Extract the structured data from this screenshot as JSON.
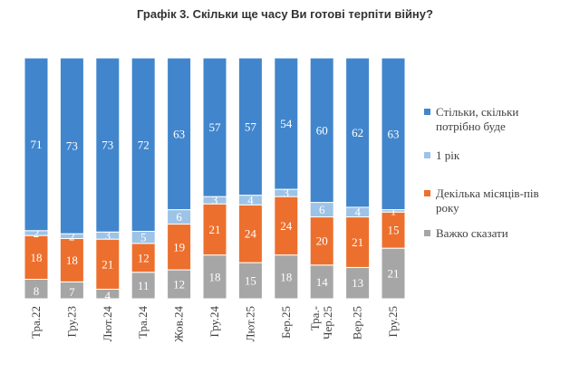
{
  "chart_data": {
    "type": "bar",
    "stacked": true,
    "title": "Графік 3. Скільки ще часу Ви готові терпіти війну?",
    "categories": [
      "Тра.22",
      "Гру.23",
      "Лют.24",
      "Тра.24",
      "Жов.24",
      "Гру.24",
      "Лют.25",
      "Бер.25",
      "Тра.-Чер.25",
      "Вер.25",
      "Гру.25"
    ],
    "category_lines": [
      [
        "Тра.22"
      ],
      [
        "Гру.23"
      ],
      [
        "Лют.24"
      ],
      [
        "Тра.24"
      ],
      [
        "Жов.24"
      ],
      [
        "Гру.24"
      ],
      [
        "Лют.25"
      ],
      [
        "Бер.25"
      ],
      [
        "Тра.-",
        "Чер.25"
      ],
      [
        "Вер.25"
      ],
      [
        "Гру.25"
      ]
    ],
    "series": [
      {
        "name": "Важко сказати",
        "color": "#a6a6a6",
        "values": [
          8,
          7,
          4,
          11,
          12,
          18,
          15,
          18,
          14,
          13,
          21
        ]
      },
      {
        "name": "Декілька місяців-пів року",
        "color": "#ed6f2d",
        "values": [
          18,
          18,
          21,
          12,
          19,
          21,
          24,
          24,
          20,
          21,
          15
        ]
      },
      {
        "name": "1 рік",
        "color": "#9dc3e6",
        "values": [
          2,
          2,
          3,
          5,
          6,
          3,
          4,
          3,
          6,
          4,
          1
        ]
      },
      {
        "name": "Стільки, скільки потрібно буде",
        "color": "#4186cc",
        "values": [
          71,
          73,
          73,
          72,
          63,
          57,
          57,
          54,
          60,
          62,
          63
        ]
      }
    ],
    "legend": {
      "position": "right",
      "items": [
        {
          "lines": [
            "Стільки, скільки",
            "потрібно буде"
          ],
          "color": "#4186cc"
        },
        {
          "lines": [
            "1 рік"
          ],
          "color": "#9dc3e6"
        },
        {
          "lines": [
            "Декілька місяців-пів",
            "року"
          ],
          "color": "#ed6f2d"
        },
        {
          "lines": [
            "Важко сказати"
          ],
          "color": "#a6a6a6"
        }
      ]
    },
    "ylim": [
      0,
      100
    ],
    "grid": false
  }
}
